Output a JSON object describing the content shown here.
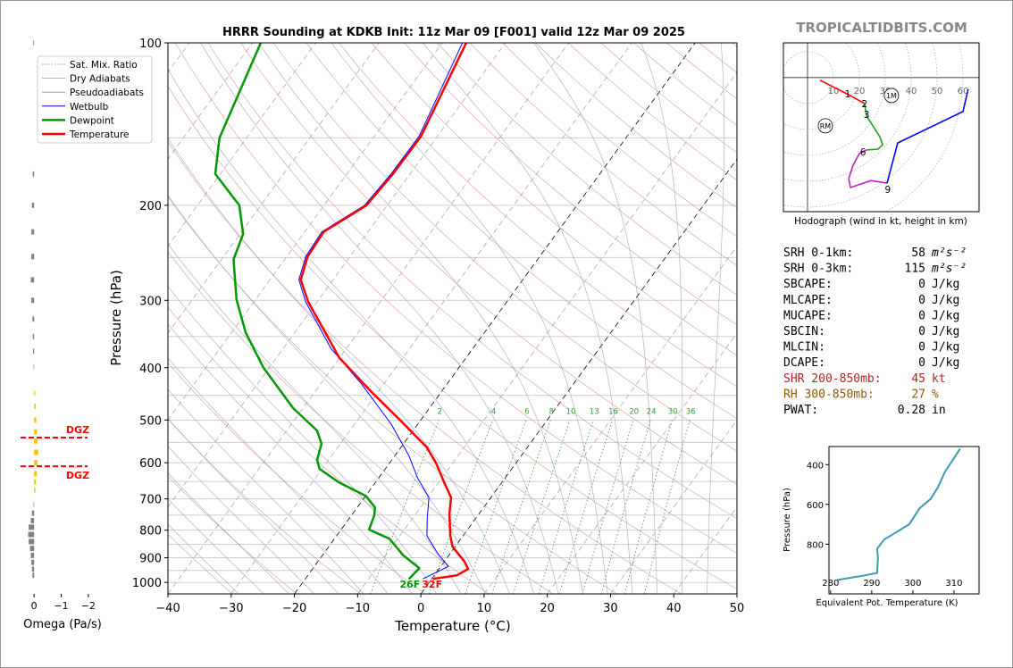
{
  "watermark": "TROPICALTIDBITS.COM",
  "chart_data": [
    {
      "type": "skewt",
      "title": "HRRR Sounding at KDKB Init: 11z Mar 09 [F001] valid 12z Mar 09 2025",
      "x_label": "Temperature (°C)",
      "y_label": "Pressure (hPa)",
      "xlim": [
        -40,
        50
      ],
      "ylim": [
        1050,
        100
      ],
      "log_y": true,
      "xticks": [
        {
          "value": -40,
          "label": "−40"
        },
        {
          "value": -30,
          "label": "−30"
        },
        {
          "value": -20,
          "label": "−20"
        },
        {
          "value": -10,
          "label": "−10"
        },
        0,
        10,
        20,
        30,
        40,
        50
      ],
      "yticks": [
        100,
        200,
        300,
        400,
        500,
        600,
        700,
        800,
        900,
        1000
      ],
      "minor_yticks": [
        150,
        250,
        350,
        450,
        550,
        650,
        750,
        850,
        950
      ],
      "mixing_ratio_labels": [
        2,
        4,
        6,
        8,
        10,
        13,
        16,
        20,
        24,
        30,
        36
      ],
      "background_legend": [
        {
          "name": "Sat. Mix. Ratio",
          "color": "#3a9a3a"
        },
        {
          "name": "Dry Adiabats",
          "color": "#d98080"
        },
        {
          "name": "Pseudoadiabats",
          "color": "#9090b8"
        }
      ],
      "series": [
        {
          "name": "Wetbulb",
          "color": "#0000ff",
          "pressure": [
            985,
            934,
            885,
            820,
            760,
            696,
            641,
            582,
            509,
            429,
            368,
            302,
            275,
            249,
            224,
            200,
            175,
            149,
            100
          ],
          "temperature": [
            -1.4,
            1.2,
            -1.9,
            -5.7,
            -7.7,
            -9.8,
            -13.8,
            -17.8,
            -24.2,
            -33.5,
            -42.5,
            -51.8,
            -55.4,
            -57.0,
            -57.3,
            -53.6,
            -53.0,
            -52.9,
            -56.8
          ]
        },
        {
          "name": "Dewpoint",
          "color": "#009900",
          "pressure": [
            985,
            941,
            891,
            830,
            798,
            751,
            726,
            691,
            653,
            616,
            593,
            553,
            523,
            475,
            400,
            344,
            299,
            252,
            226,
            200,
            175,
            150,
            100
          ],
          "temperature": [
            -3.6,
            -3.2,
            -7.2,
            -11.3,
            -15.6,
            -16.4,
            -17.2,
            -20.0,
            -25.7,
            -30.4,
            -31.8,
            -33.0,
            -35.2,
            -41.6,
            -50.9,
            -57.8,
            -63.0,
            -68.1,
            -69.5,
            -73.4,
            -80.8,
            -84.3,
            -88.7
          ]
        },
        {
          "name": "Temperature",
          "color": "#ff0000",
          "pressure": [
            985,
            970,
            944,
            913,
            859,
            820,
            746,
            696,
            653,
            600,
            561,
            500,
            441,
            383,
            302,
            275,
            249,
            224,
            200,
            175,
            149,
            100
          ],
          "temperature": [
            0.2,
            3.6,
            4.6,
            3.1,
            -0.4,
            -2.0,
            -4.7,
            -6.3,
            -9.1,
            -12.7,
            -16.0,
            -23.3,
            -31.4,
            -40.1,
            -51.4,
            -55.1,
            -56.7,
            -57.0,
            -53.3,
            -52.7,
            -52.6,
            -56.2
          ]
        }
      ],
      "surface_labels": [
        {
          "text": "26F",
          "color": "#009900"
        },
        {
          "text": "32F",
          "color": "#ff0000"
        }
      ]
    },
    {
      "type": "omega",
      "x_label": "Omega (Pa/s)",
      "xlim": [
        0.5,
        -2.3
      ],
      "ylim": [
        1050,
        100
      ],
      "xticks": [
        0,
        {
          "value": -1,
          "label": "−1"
        },
        {
          "value": -2,
          "label": "−2"
        }
      ],
      "pressure": [
        100,
        175,
        200,
        224,
        249,
        275,
        300,
        325,
        350,
        373,
        398,
        446,
        472,
        500,
        526,
        547,
        574,
        600,
        629,
        651,
        674,
        717,
        744,
        768,
        790,
        815,
        840,
        865,
        891,
        918,
        945,
        970
      ],
      "values": [
        0.03,
        0.05,
        0.08,
        0.1,
        0.1,
        0.12,
        0.1,
        0.06,
        0.05,
        0.04,
        0.02,
        -0.04,
        -0.06,
        -0.08,
        -0.1,
        -0.12,
        -0.15,
        -0.12,
        -0.1,
        -0.07,
        -0.05,
        0.02,
        0.08,
        0.12,
        0.2,
        0.22,
        0.2,
        0.15,
        0.12,
        0.1,
        0.08,
        0.06
      ],
      "positive_color": "#808080",
      "negative_color": "#f5c518",
      "dgz": {
        "label": "DGZ",
        "pressures": [
          539,
          609
        ],
        "color": "#ff0000"
      }
    },
    {
      "type": "hodograph",
      "title": "Hodograph (wind in kt, height in km)",
      "xlim": [
        -9.3,
        66.2
      ],
      "ylim": [
        -51.7,
        13.4
      ],
      "rings": [
        10,
        20,
        30,
        40,
        50,
        60
      ],
      "series": [
        {
          "color": "#ff0000",
          "u": [
            4.8,
            15.9,
            22.0
          ],
          "v": [
            -1.0,
            -6.6,
            -10.0
          ]
        },
        {
          "color": "#22a022",
          "u": [
            22.0,
            22.8,
            27.9,
            29.0,
            27.2,
            22.8
          ],
          "v": [
            -10.0,
            -14.8,
            -22.8,
            -25.9,
            -27.6,
            -27.9
          ]
        },
        {
          "color": "#c020c0",
          "u": [
            22.8,
            20.0,
            17.6,
            15.9,
            16.6,
            24.5,
            30.7
          ],
          "v": [
            -27.9,
            -29.3,
            -33.8,
            -39.0,
            -42.4,
            -39.7,
            -40.7
          ]
        },
        {
          "color": "#0000ff",
          "u": [
            30.7,
            34.8,
            60.0,
            62.0
          ],
          "v": [
            -40.7,
            -25.2,
            -13.1,
            -4.5
          ]
        }
      ],
      "height_labels": [
        {
          "text": "1",
          "u": 15.5,
          "v": -6.2
        },
        {
          "text": "2",
          "u": 22.0,
          "v": -10.0
        },
        {
          "text": "3",
          "u": 22.8,
          "v": -14.1
        },
        {
          "text": "6",
          "u": 21.4,
          "v": -28.6
        },
        {
          "text": "9",
          "u": 31.0,
          "v": -43.1
        }
      ],
      "markers": [
        {
          "text": "RM",
          "u": 6.9,
          "v": -18.6
        },
        {
          "text": "1M",
          "u": 32.4,
          "v": -6.9
        }
      ]
    },
    {
      "type": "line",
      "x_label": "Equivalent Pot. Temperature (K)",
      "y_label": "Pressure (hPa)",
      "xlim": [
        279.6,
        316.1
      ],
      "ylim": [
        1050,
        309
      ],
      "xticks": [
        280,
        290,
        300,
        310
      ],
      "yticks": [
        400,
        600,
        800
      ],
      "color": "#3a9ab0",
      "theta_e": [
        281.7,
        288.3,
        291.3,
        291.5,
        291.3,
        293.0,
        295.9,
        299.1,
        301.7,
        304.3,
        306.1,
        307.8,
        310.0,
        311.5
      ],
      "pressure": [
        980,
        957,
        945,
        868,
        823,
        777,
        741,
        700,
        618,
        573,
        514,
        436,
        368,
        320
      ]
    }
  ],
  "stats": [
    {
      "label": "SRH 0-1km:",
      "value": 58,
      "unit": "m²s⁻²"
    },
    {
      "label": "SRH 0-3km:",
      "value": 115,
      "unit": "m²s⁻²"
    },
    {
      "label": "SBCAPE:",
      "value": 0,
      "unit": "J/kg"
    },
    {
      "label": "MLCAPE:",
      "value": 0,
      "unit": "J/kg"
    },
    {
      "label": "MUCAPE:",
      "value": 0,
      "unit": "J/kg"
    },
    {
      "label": "SBCIN:",
      "value": 0,
      "unit": "J/kg"
    },
    {
      "label": "MLCIN:",
      "value": 0,
      "unit": "J/kg"
    },
    {
      "label": "DCAPE:",
      "value": 0,
      "unit": "J/kg"
    },
    {
      "label": "SHR 200-850mb:",
      "value": 45,
      "unit": "kt",
      "color": "#b22222"
    },
    {
      "label": "RH 300-850mb:",
      "value": 27,
      "unit": "%",
      "color": "#8b5a00"
    },
    {
      "label": "PWAT:",
      "value": 0.28,
      "unit": "in"
    }
  ]
}
